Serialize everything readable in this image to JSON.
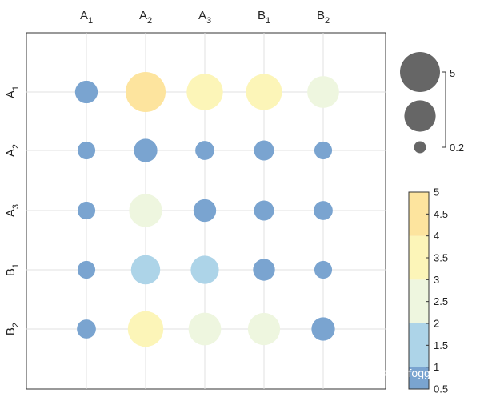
{
  "chart_data": {
    "type": "bubble-matrix",
    "rows": [
      {
        "label": "A",
        "sub": "1"
      },
      {
        "label": "A",
        "sub": "2"
      },
      {
        "label": "A",
        "sub": "3"
      },
      {
        "label": "B",
        "sub": "1"
      },
      {
        "label": "B",
        "sub": "2"
      }
    ],
    "columns": [
      {
        "label": "A",
        "sub": "1"
      },
      {
        "label": "A",
        "sub": "2"
      },
      {
        "label": "A",
        "sub": "3"
      },
      {
        "label": "B",
        "sub": "1"
      },
      {
        "label": "B",
        "sub": "2"
      }
    ],
    "values": [
      [
        0.9,
        5.0,
        3.8,
        3.7,
        2.6
      ],
      [
        0.4,
        1.0,
        0.5,
        0.6,
        0.4
      ],
      [
        0.4,
        2.9,
        0.9,
        0.6,
        0.5
      ],
      [
        0.4,
        2.0,
        1.8,
        0.8,
        0.4
      ],
      [
        0.5,
        3.6,
        2.8,
        2.7,
        1.0
      ]
    ],
    "size_legend": {
      "max_label": "5",
      "min_label": "0.2",
      "values": [
        5,
        2.5,
        0.2
      ]
    },
    "colorbar": {
      "range": [
        0.5,
        5
      ],
      "ticks": [
        "0.5",
        "1",
        "1.5",
        "2",
        "2.5",
        "3",
        "3.5",
        "4",
        "4.5",
        "5"
      ],
      "bands": [
        {
          "from": 0.5,
          "to": 1,
          "color": "#7aa4d0"
        },
        {
          "from": 1,
          "to": 2,
          "color": "#add4e8"
        },
        {
          "from": 2,
          "to": 3,
          "color": "#eef6df"
        },
        {
          "from": 3,
          "to": 4,
          "color": "#fcf5b8"
        },
        {
          "from": 4,
          "to": 5,
          "color": "#fde49e"
        }
      ]
    },
    "grid": true
  },
  "watermark": "知乎 @WWfogger"
}
